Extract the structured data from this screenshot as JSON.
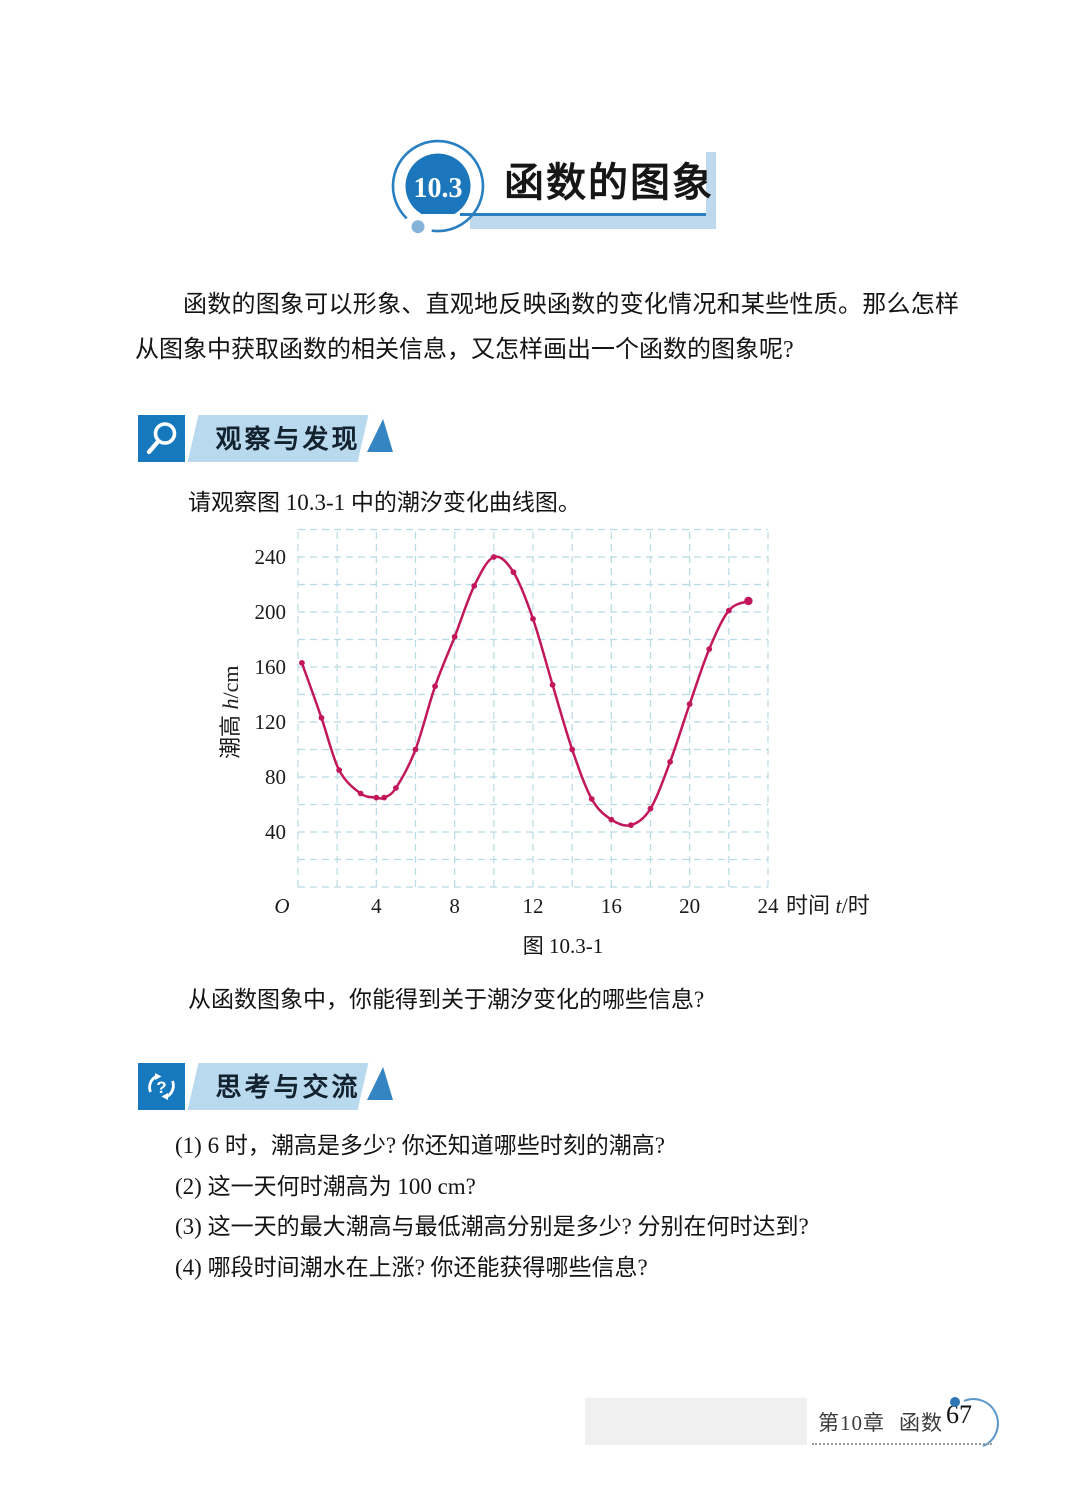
{
  "header": {
    "badge_number": "10.3",
    "title": "函数的图象"
  },
  "intro": "函数的图象可以形象、直观地反映函数的变化情况和某些性质。那么怎样从图象中获取函数的相关信息，又怎样画出一个函数的图象呢?",
  "observe_section": {
    "label": "观察与发现",
    "icon": "magnifier-icon"
  },
  "observe_intro": "请观察图 10.3-1 中的潮汐变化曲线图。",
  "chart_data": {
    "type": "line",
    "title": "潮汐变化曲线图",
    "xlabel": {
      "prefix": "时间 ",
      "var": "t",
      "suffix": "/时"
    },
    "ylabel": {
      "prefix": "潮高 ",
      "var": "h",
      "suffix": "/cm"
    },
    "origin_label": "O",
    "x_ticks": [
      4,
      8,
      12,
      16,
      20,
      24
    ],
    "y_ticks": [
      40,
      80,
      120,
      160,
      200,
      240
    ],
    "xlim": [
      0,
      24
    ],
    "ylim": [
      0,
      260
    ],
    "grid": {
      "on": true,
      "x_step": 2,
      "y_step": 20,
      "style": "dashed",
      "color": "#b7dbe4"
    },
    "line_color": "#c2185b",
    "points": [
      [
        0.2,
        163
      ],
      [
        1.2,
        123
      ],
      [
        2.1,
        85
      ],
      [
        3.2,
        68
      ],
      [
        4,
        65
      ],
      [
        4.4,
        65
      ],
      [
        5,
        72
      ],
      [
        6,
        100
      ],
      [
        7,
        146
      ],
      [
        8,
        182
      ],
      [
        9,
        219
      ],
      [
        10,
        240
      ],
      [
        11,
        229
      ],
      [
        12,
        195
      ],
      [
        13,
        147
      ],
      [
        14,
        100
      ],
      [
        15,
        64
      ],
      [
        16,
        49
      ],
      [
        17,
        45
      ],
      [
        18,
        57
      ],
      [
        19,
        91
      ],
      [
        20,
        133
      ],
      [
        21,
        173
      ],
      [
        22,
        201
      ],
      [
        23,
        208
      ]
    ]
  },
  "figure_caption": "图 10.3-1",
  "observe_question": "从函数图象中，你能得到关于潮汐变化的哪些信息?",
  "think_section": {
    "label": "思考与交流",
    "icon": "question-refresh-icon"
  },
  "questions": [
    "(1) 6 时，潮高是多少? 你还知道哪些时刻的潮高?",
    "(2) 这一天何时潮高为 100 cm?",
    "(3) 这一天的最大潮高与最低潮高分别是多少? 分别在何时达到?",
    "(4) 哪段时间潮水在上涨? 你还能获得哪些信息?"
  ],
  "footer": {
    "chapter": "第10章",
    "subject": "函数",
    "page_number": "67"
  },
  "colors": {
    "accent_blue": "#1779bd",
    "banner_light_blue": "#b9d9ee",
    "triangle_blue": "#3585c2",
    "card_shadow": "#bed9ed",
    "curve_crimson": "#c2185b",
    "grid_cyan": "#b7dbe4"
  }
}
